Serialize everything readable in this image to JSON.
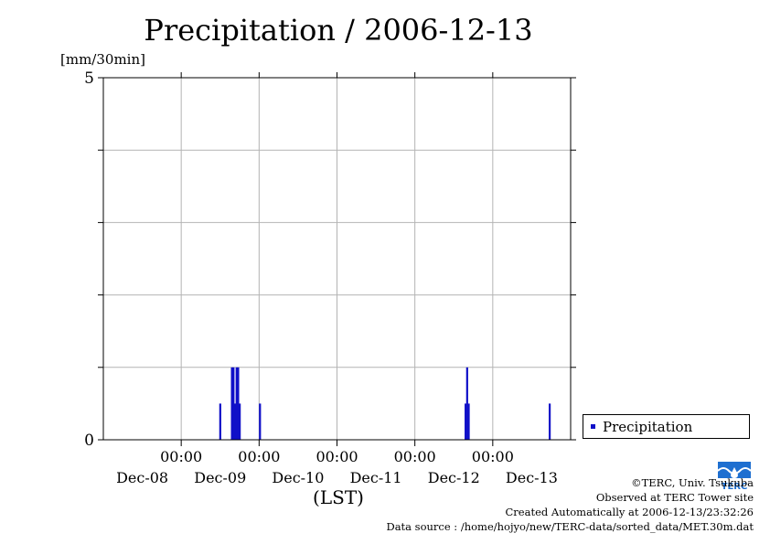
{
  "chart_data": {
    "type": "bar",
    "title": "Precipitation / 2006-12-13",
    "ylabel": "[mm/30min]",
    "xlabel": "(LST)",
    "ylim": [
      0,
      5
    ],
    "y_tick_labels": [
      "5",
      "0"
    ],
    "y_ticks": [
      0,
      1,
      2,
      3,
      4,
      5
    ],
    "x_range_days": [
      0,
      6
    ],
    "x_ticks": [
      {
        "day": 1,
        "time": "00:00",
        "date": "Dec-09"
      },
      {
        "day": 2,
        "time": "00:00",
        "date": "Dec-10"
      },
      {
        "day": 3,
        "time": "00:00",
        "date": "Dec-11"
      },
      {
        "day": 4,
        "time": "00:00",
        "date": "Dec-12"
      },
      {
        "day": 5,
        "time": "00:00",
        "date": "Dec-13"
      }
    ],
    "x_date_labels": [
      {
        "day": 0.5,
        "text": "Dec-08"
      },
      {
        "day": 1.5,
        "text": "Dec-09"
      },
      {
        "day": 2.5,
        "text": "Dec-10"
      },
      {
        "day": 3.5,
        "text": "Dec-11"
      },
      {
        "day": 4.5,
        "text": "Dec-12"
      },
      {
        "day": 5.5,
        "text": "Dec-13"
      }
    ],
    "grid": true,
    "legend": "bottom-right",
    "series": [
      {
        "name": "Precipitation",
        "color": "#1010c8",
        "points": [
          {
            "day": 1.5,
            "value": 0.5
          },
          {
            "day": 1.65,
            "value": 1.0
          },
          {
            "day": 1.67,
            "value": 1.0
          },
          {
            "day": 1.69,
            "value": 0.5
          },
          {
            "day": 1.71,
            "value": 1.0
          },
          {
            "day": 1.73,
            "value": 1.0
          },
          {
            "day": 1.75,
            "value": 0.5
          },
          {
            "day": 2.01,
            "value": 0.5
          },
          {
            "day": 4.65,
            "value": 0.5
          },
          {
            "day": 4.67,
            "value": 1.0
          },
          {
            "day": 4.69,
            "value": 0.5
          },
          {
            "day": 5.73,
            "value": 0.5
          }
        ]
      }
    ]
  },
  "legend": {
    "label": "Precipitation"
  },
  "credits": {
    "line1": "©TERC, Univ. Tsukuba",
    "line2": "Observed at TERC Tower site",
    "line3": "Created Automatically at 2006-12-13/23:32:26",
    "line4": "Data source : /home/hojyo/new/TERC-data/sorted_data/MET.30m.dat"
  },
  "logo": {
    "text": "TERC",
    "color": "#1e6fd0"
  }
}
